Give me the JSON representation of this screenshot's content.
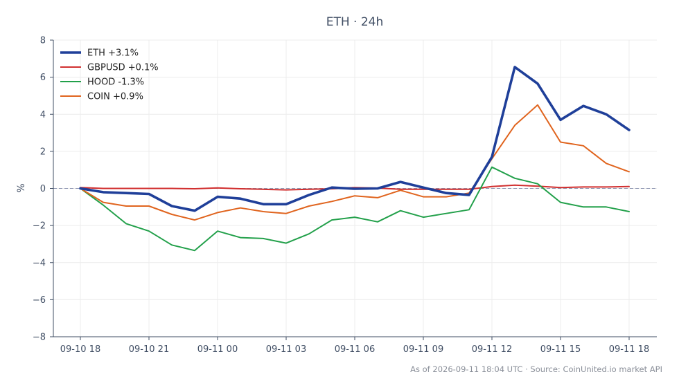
{
  "chart_data": {
    "type": "line",
    "title": "ETH · 24h",
    "ylabel": "%",
    "xlabel": "",
    "ylim": [
      -8,
      8
    ],
    "yticks": [
      -8,
      -6,
      -4,
      -2,
      0,
      2,
      4,
      6,
      8
    ],
    "x": [
      "09-10 18",
      "09-10 19",
      "09-10 20",
      "09-10 21",
      "09-10 22",
      "09-10 23",
      "09-11 00",
      "09-11 01",
      "09-11 02",
      "09-11 03",
      "09-11 04",
      "09-11 05",
      "09-11 06",
      "09-11 07",
      "09-11 08",
      "09-11 09",
      "09-11 10",
      "09-11 11",
      "09-11 12",
      "09-11 13",
      "09-11 14",
      "09-11 15",
      "09-11 16",
      "09-11 17",
      "09-11 18"
    ],
    "xtick_labels": [
      "09-10 18",
      "09-10 21",
      "09-11 00",
      "09-11 03",
      "09-11 06",
      "09-11 09",
      "09-11 12",
      "09-11 15",
      "09-11 18"
    ],
    "grid": true,
    "zero_line": true,
    "legend_position": "top-left",
    "series": [
      {
        "name": "ETH +3.1%",
        "color": "#1f3f99",
        "width": "thick",
        "values": [
          0.0,
          -0.2,
          -0.25,
          -0.3,
          -0.95,
          -1.2,
          -0.45,
          -0.55,
          -0.85,
          -0.85,
          -0.35,
          0.05,
          -0.02,
          0.0,
          0.35,
          0.05,
          -0.25,
          -0.35,
          1.7,
          6.55,
          5.65,
          3.7,
          4.45,
          4.0,
          3.15
        ]
      },
      {
        "name": "GBPUSD +0.1%",
        "color": "#d12f2f",
        "width": "normal",
        "values": [
          0.05,
          0.0,
          0.0,
          0.0,
          0.0,
          -0.02,
          0.03,
          -0.02,
          -0.05,
          -0.08,
          -0.05,
          -0.02,
          0.05,
          0.02,
          -0.05,
          -0.05,
          -0.05,
          -0.05,
          0.1,
          0.18,
          0.12,
          0.05,
          0.08,
          0.08,
          0.1
        ]
      },
      {
        "name": "HOOD -1.3%",
        "color": "#22a04a",
        "width": "normal",
        "values": [
          0.0,
          -0.9,
          -1.9,
          -2.3,
          -3.05,
          -3.35,
          -2.3,
          -2.65,
          -2.7,
          -2.95,
          -2.45,
          -1.7,
          -1.55,
          -1.8,
          -1.2,
          -1.55,
          -1.35,
          -1.15,
          1.15,
          0.55,
          0.25,
          -0.75,
          -1.0,
          -1.0,
          -1.25
        ]
      },
      {
        "name": "COIN +0.9%",
        "color": "#e0641e",
        "width": "normal",
        "values": [
          0.0,
          -0.75,
          -0.95,
          -0.95,
          -1.4,
          -1.7,
          -1.3,
          -1.05,
          -1.25,
          -1.35,
          -0.95,
          -0.7,
          -0.4,
          -0.5,
          -0.1,
          -0.45,
          -0.45,
          -0.25,
          1.6,
          3.4,
          4.5,
          2.5,
          2.3,
          1.35,
          0.9
        ]
      }
    ],
    "footer": "As of 2026-09-11 18:04 UTC · Source: CoinUnited.io market API"
  }
}
